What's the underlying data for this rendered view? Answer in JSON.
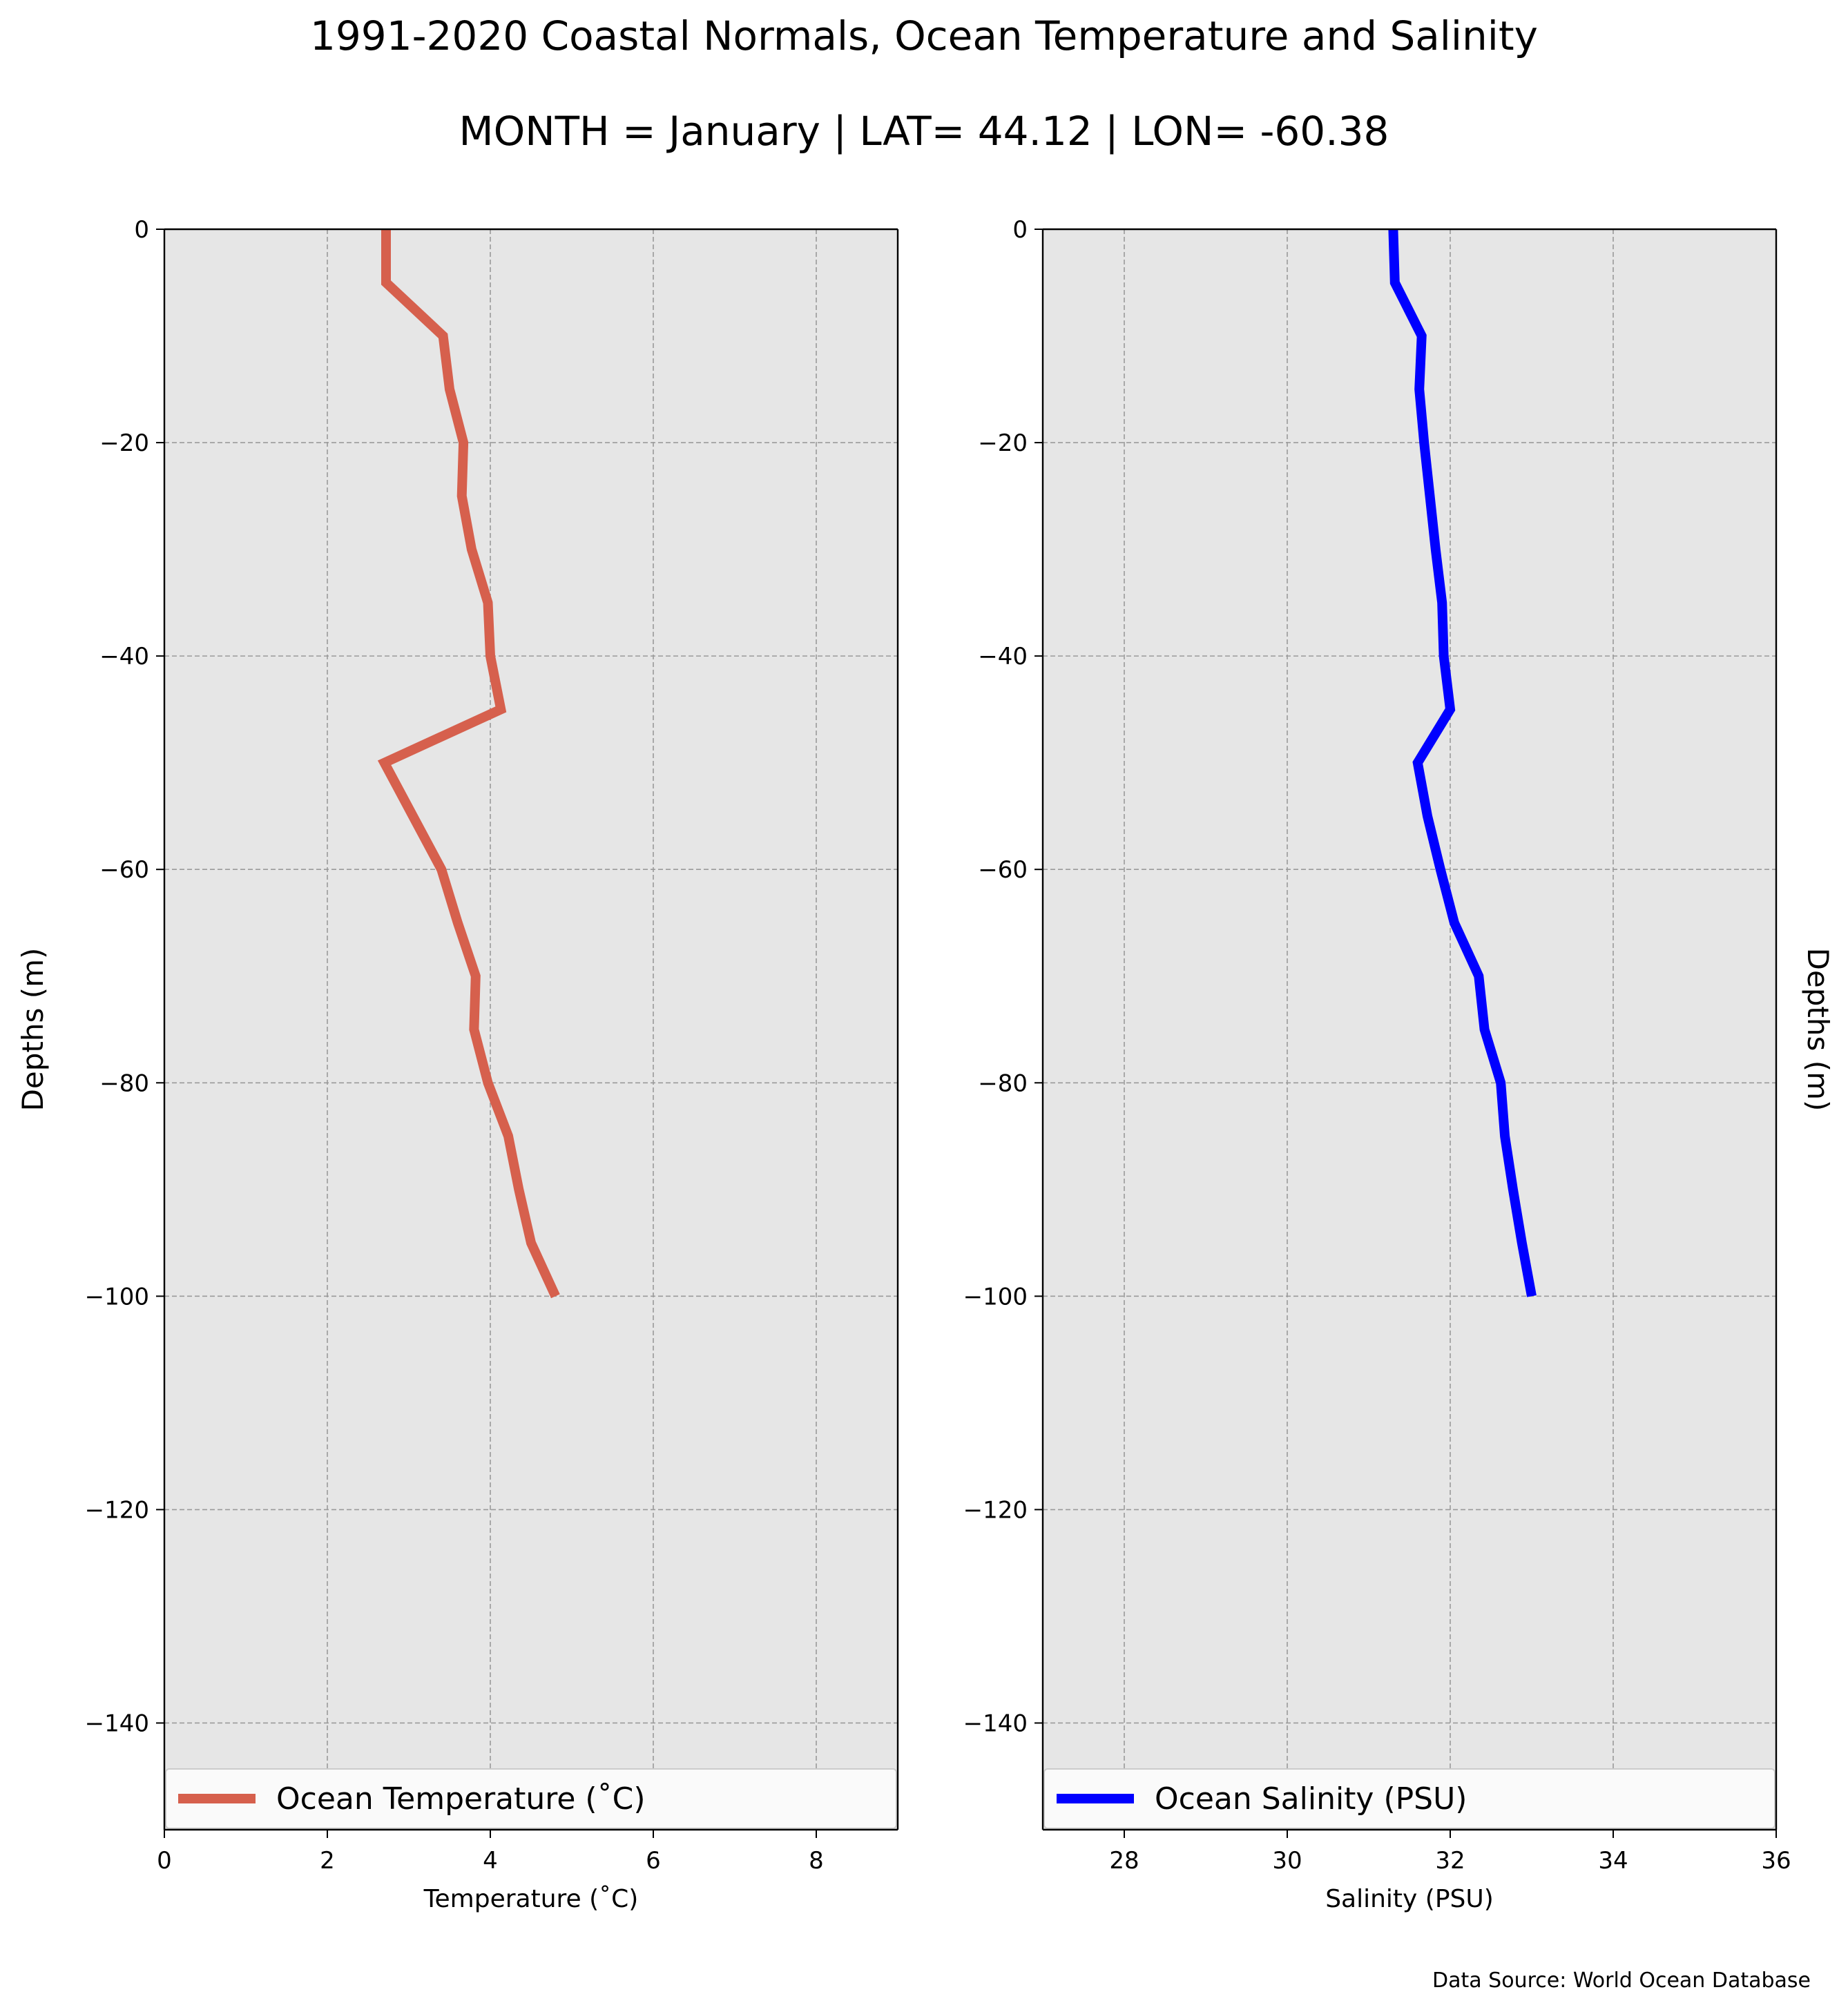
{
  "title": "1991-2020 Coastal Normals, Ocean Temperature and Salinity",
  "subtitle": "MONTH = January | LAT= 44.12 | LON= -60.38",
  "source_note": "Data Source: World Ocean Database",
  "colors": {
    "plot_background": "#e6e6e6",
    "grid": "#9a9a9a",
    "temperature_line": "#d6604d",
    "salinity_line": "#0000ff"
  },
  "chart_data": [
    {
      "type": "line",
      "orientation": "depth-profile",
      "xlabel": "Temperature ($^\\circ$C)",
      "xlabel_display": "Temperature (˚C)",
      "ylabel": "Depths (m)",
      "ylabel_side": "left",
      "xlim": [
        0,
        9
      ],
      "ylim": [
        -150,
        0
      ],
      "xticks": [
        0,
        2,
        4,
        6,
        8
      ],
      "xtick_labels": [
        "0",
        "2",
        "4",
        "6",
        "8"
      ],
      "yticks": [
        0,
        -20,
        -40,
        -60,
        -80,
        -100,
        -120,
        -140
      ],
      "ytick_labels": [
        "0",
        "−20",
        "−40",
        "−60",
        "−80",
        "−100",
        "−120",
        "−140"
      ],
      "grid": true,
      "legend_position": "bottom",
      "series": [
        {
          "name": "Ocean Temperature (˚C)",
          "color": "#d6604d",
          "depth": [
            0,
            -5,
            -10,
            -15,
            -20,
            -25,
            -30,
            -35,
            -40,
            -45,
            -50,
            -55,
            -60,
            -65,
            -70,
            -75,
            -80,
            -85,
            -90,
            -95,
            -100
          ],
          "values": [
            2.72,
            2.72,
            3.42,
            3.5,
            3.67,
            3.65,
            3.77,
            3.97,
            4.0,
            4.13,
            2.7,
            3.05,
            3.4,
            3.6,
            3.82,
            3.8,
            3.97,
            4.22,
            4.35,
            4.5,
            4.8
          ]
        }
      ]
    },
    {
      "type": "line",
      "orientation": "depth-profile",
      "xlabel": "Salinity (PSU)",
      "ylabel": "Depths (m)",
      "ylabel_side": "right",
      "xlim": [
        27,
        36
      ],
      "ylim": [
        -150,
        0
      ],
      "xticks": [
        28,
        30,
        32,
        34,
        36
      ],
      "xtick_labels": [
        "28",
        "30",
        "32",
        "34",
        "36"
      ],
      "yticks": [
        0,
        -20,
        -40,
        -60,
        -80,
        -100,
        -120,
        -140
      ],
      "ytick_labels": [
        "0",
        "−20",
        "−40",
        "−60",
        "−80",
        "−100",
        "−120",
        "−140"
      ],
      "grid": true,
      "legend_position": "bottom",
      "series": [
        {
          "name": "Ocean Salinity (PSU)",
          "color": "#0000ff",
          "depth": [
            0,
            -5,
            -10,
            -15,
            -20,
            -25,
            -30,
            -35,
            -40,
            -45,
            -50,
            -55,
            -60,
            -65,
            -70,
            -75,
            -80,
            -85,
            -90,
            -95,
            -100
          ],
          "values": [
            31.3,
            31.32,
            31.65,
            31.62,
            31.68,
            31.75,
            31.82,
            31.9,
            31.92,
            32.0,
            31.6,
            31.72,
            31.88,
            32.05,
            32.35,
            32.42,
            32.62,
            32.67,
            32.77,
            32.88,
            33.0
          ]
        }
      ]
    }
  ]
}
